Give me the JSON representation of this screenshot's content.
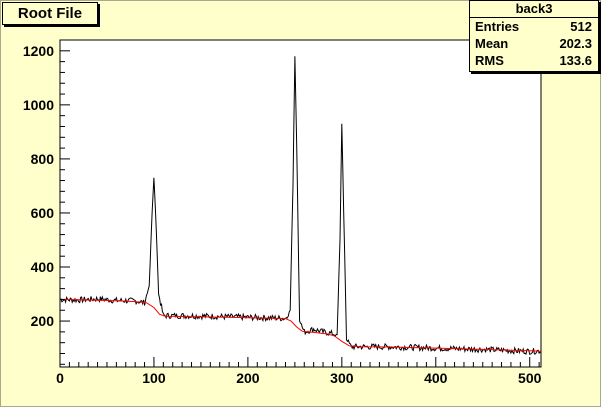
{
  "canvas": {
    "title": "Root File"
  },
  "stats": {
    "name": "back3",
    "rows": [
      {
        "label": "Entries",
        "value": "512"
      },
      {
        "label": "Mean",
        "value": "202.3"
      },
      {
        "label": "RMS",
        "value": "133.6"
      }
    ]
  },
  "chart_data": {
    "type": "line",
    "title": "Root File",
    "xlabel": "",
    "ylabel": "",
    "xlim": [
      0,
      512
    ],
    "ylim": [
      30,
      1240
    ],
    "x_ticks": [
      "0",
      "100",
      "200",
      "300",
      "400",
      "500"
    ],
    "y_ticks": [
      "200",
      "400",
      "600",
      "800",
      "1000",
      "1200"
    ],
    "grid": false,
    "colors": {
      "histogram": "#000000",
      "background_fit": "#ff0000",
      "frame_bg": "#ffffcc",
      "plot_bg": "#ffffff"
    },
    "series": [
      {
        "values_x": [
          0,
          20,
          40,
          60,
          80,
          90,
          95,
          98,
          100,
          102,
          105,
          110,
          130,
          160,
          190,
          220,
          240,
          245,
          248,
          250,
          252,
          255,
          260,
          270,
          280,
          295,
          298,
          300,
          302,
          305,
          310,
          350,
          400,
          450,
          500,
          512
        ],
        "values_y": [
          280,
          278,
          282,
          276,
          275,
          268,
          330,
          600,
          730,
          580,
          300,
          220,
          220,
          218,
          215,
          212,
          210,
          240,
          700,
          1180,
          850,
          200,
          160,
          170,
          160,
          150,
          500,
          930,
          600,
          130,
          105,
          105,
          100,
          95,
          88,
          90
        ]
      },
      {
        "values_x": [
          0,
          20,
          40,
          60,
          80,
          92,
          100,
          106,
          112,
          130,
          160,
          190,
          220,
          240,
          246,
          252,
          258,
          270,
          285,
          292,
          300,
          308,
          320,
          350,
          400,
          450,
          500,
          512
        ],
        "values_y": [
          280,
          279,
          277,
          275,
          272,
          268,
          250,
          225,
          218,
          217,
          215,
          213,
          211,
          209,
          200,
          178,
          162,
          158,
          152,
          145,
          125,
          108,
          105,
          104,
          100,
          95,
          90,
          88
        ]
      }
    ]
  }
}
